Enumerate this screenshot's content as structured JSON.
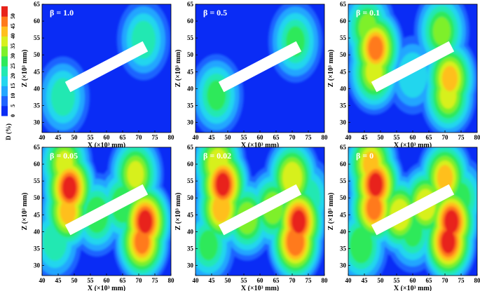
{
  "colorbar": {
    "title": "D (%)",
    "ticks": [
      "0",
      "5",
      "10",
      "15",
      "20",
      "25",
      "30",
      "35",
      "40",
      "45",
      "50"
    ],
    "colors": [
      "#0a2cf5",
      "#1f63ff",
      "#22a6ff",
      "#23d6ee",
      "#22e8b2",
      "#2fe95a",
      "#7ef02a",
      "#d7f01f",
      "#ffbf1e",
      "#ff7a1b",
      "#e8231a"
    ]
  },
  "axes": {
    "xlabel": "X (×10³ mm)",
    "ylabel": "Z (×10³ mm)",
    "xticks": [
      "40",
      "45",
      "50",
      "55",
      "60",
      "65",
      "70",
      "75",
      "80"
    ],
    "yticks": [
      "30",
      "35",
      "40",
      "45",
      "50",
      "55",
      "60",
      "65"
    ]
  },
  "chart_data": [
    {
      "type": "heatmap",
      "label": "β = 1.0",
      "xlim": [
        40,
        80
      ],
      "ylim": [
        27,
        65
      ],
      "member": {
        "x1": 48,
        "z1": 40.5,
        "x2": 72,
        "z2": 52.5
      },
      "hotspots": [
        {
          "x": 46.5,
          "z": 37.5,
          "peak": 22
        },
        {
          "x": 71.5,
          "z": 54.5,
          "peak": 22
        }
      ]
    },
    {
      "type": "heatmap",
      "label": "β = 0.5",
      "xlim": [
        40,
        80
      ],
      "ylim": [
        27,
        65
      ],
      "member": {
        "x1": 48,
        "z1": 40.5,
        "x2": 72,
        "z2": 52.5
      },
      "hotspots": [
        {
          "x": 46.5,
          "z": 38,
          "peak": 25
        },
        {
          "x": 71,
          "z": 54,
          "peak": 25
        }
      ]
    },
    {
      "type": "heatmap",
      "label": "β = 0.1",
      "xlim": [
        40,
        80
      ],
      "ylim": [
        27,
        65
      ],
      "member": {
        "x1": 48,
        "z1": 40.5,
        "x2": 72,
        "z2": 52.5
      },
      "hotspots": [
        {
          "x": 48.5,
          "z": 52,
          "peak": 45
        },
        {
          "x": 48,
          "z": 45,
          "peak": 35
        },
        {
          "x": 46,
          "z": 58,
          "peak": 30
        },
        {
          "x": 71.5,
          "z": 43,
          "peak": 40
        },
        {
          "x": 71,
          "z": 38,
          "peak": 35
        },
        {
          "x": 69,
          "z": 57,
          "peak": 30
        },
        {
          "x": 60,
          "z": 44,
          "peak": 18
        }
      ]
    },
    {
      "type": "heatmap",
      "label": "β = 0.05",
      "xlim": [
        40,
        80
      ],
      "ylim": [
        27,
        65
      ],
      "member": {
        "x1": 48,
        "z1": 40.5,
        "x2": 72,
        "z2": 52.5
      },
      "hotspots": [
        {
          "x": 48.5,
          "z": 53,
          "peak": 50
        },
        {
          "x": 48,
          "z": 46,
          "peak": 40
        },
        {
          "x": 47,
          "z": 60,
          "peak": 35
        },
        {
          "x": 72,
          "z": 43,
          "peak": 50
        },
        {
          "x": 71,
          "z": 37,
          "peak": 45
        },
        {
          "x": 69,
          "z": 57,
          "peak": 35
        },
        {
          "x": 57,
          "z": 45,
          "peak": 28
        },
        {
          "x": 65,
          "z": 48,
          "peak": 28
        },
        {
          "x": 44,
          "z": 37,
          "peak": 22
        }
      ]
    },
    {
      "type": "heatmap",
      "label": "β = 0.02",
      "xlim": [
        40,
        80
      ],
      "ylim": [
        27,
        65
      ],
      "member": {
        "x1": 48,
        "z1": 40.5,
        "x2": 72,
        "z2": 52.5
      },
      "hotspots": [
        {
          "x": 48.5,
          "z": 54,
          "peak": 50
        },
        {
          "x": 48,
          "z": 47,
          "peak": 42
        },
        {
          "x": 47,
          "z": 60,
          "peak": 38
        },
        {
          "x": 72,
          "z": 43,
          "peak": 50
        },
        {
          "x": 71,
          "z": 37,
          "peak": 48
        },
        {
          "x": 70,
          "z": 56,
          "peak": 38
        },
        {
          "x": 56,
          "z": 44,
          "peak": 32
        },
        {
          "x": 64,
          "z": 47,
          "peak": 32
        },
        {
          "x": 44,
          "z": 36,
          "peak": 25
        },
        {
          "x": 75,
          "z": 50,
          "peak": 22
        }
      ]
    },
    {
      "type": "heatmap",
      "label": "β = 0",
      "xlim": [
        40,
        80
      ],
      "ylim": [
        27,
        65
      ],
      "member": {
        "x1": 48,
        "z1": 40.5,
        "x2": 72,
        "z2": 52.5
      },
      "hotspots": [
        {
          "x": 48.5,
          "z": 54,
          "peak": 50
        },
        {
          "x": 48,
          "z": 47,
          "peak": 45
        },
        {
          "x": 47,
          "z": 60,
          "peak": 40
        },
        {
          "x": 72,
          "z": 43,
          "peak": 50
        },
        {
          "x": 71,
          "z": 37,
          "peak": 50
        },
        {
          "x": 70,
          "z": 56,
          "peak": 40
        },
        {
          "x": 56,
          "z": 45,
          "peak": 38
        },
        {
          "x": 64,
          "z": 48,
          "peak": 38
        },
        {
          "x": 44,
          "z": 36,
          "peak": 28
        },
        {
          "x": 75,
          "z": 50,
          "peak": 25
        },
        {
          "x": 60,
          "z": 40,
          "peak": 25
        }
      ]
    }
  ]
}
